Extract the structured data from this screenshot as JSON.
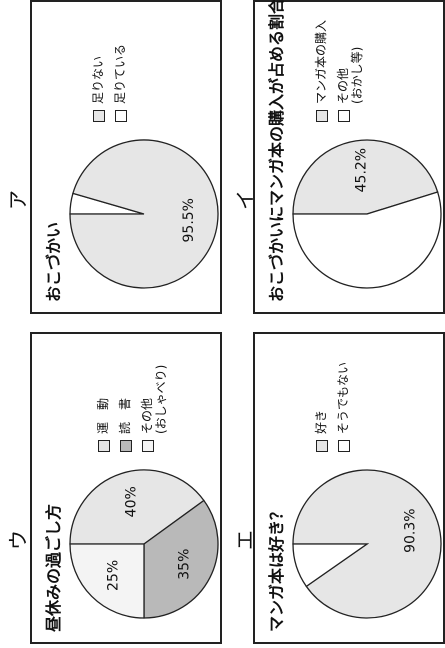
{
  "panels": {
    "a": {
      "label": "ア",
      "chart_data": {
        "type": "pie",
        "title": "おこづかい",
        "labels": [
          "足りない",
          "足りている"
        ],
        "values": [
          4.5,
          95.5
        ],
        "colors": [
          "#ffffff",
          "#e6e6e6"
        ],
        "slice_labels": [
          "",
          "95.5%"
        ]
      }
    },
    "b": {
      "label": "イ",
      "chart_data": {
        "type": "pie",
        "title": "おこづかいにマンガ本の購入が占める割合",
        "labels": [
          "マンガ本の購入",
          "その他"
        ],
        "sublabels": [
          "",
          "(おかし等)"
        ],
        "values": [
          45.2,
          54.8
        ],
        "colors": [
          "#e6e6e6",
          "#ffffff"
        ],
        "slice_labels": [
          "45.2%",
          ""
        ]
      }
    },
    "c": {
      "label": "ウ",
      "chart_data": {
        "type": "pie",
        "title": "昼休みの過ごし方",
        "labels": [
          "運　動",
          "読　書",
          "その他"
        ],
        "sublabels": [
          "",
          "",
          "(おしゃべり)"
        ],
        "values": [
          40,
          35,
          25
        ],
        "colors": [
          "#e6e6e6",
          "#b9b9b9",
          "#f4f4f4"
        ],
        "slice_labels": [
          "40%",
          "35%",
          "25%"
        ]
      }
    },
    "d": {
      "label": "エ",
      "chart_data": {
        "type": "pie",
        "title": "マンガ本は好き？",
        "labels": [
          "好き",
          "そうでもない"
        ],
        "values": [
          90.3,
          9.7
        ],
        "colors": [
          "#e6e6e6",
          "#ffffff"
        ],
        "slice_labels": [
          "90.3%",
          ""
        ]
      }
    }
  }
}
